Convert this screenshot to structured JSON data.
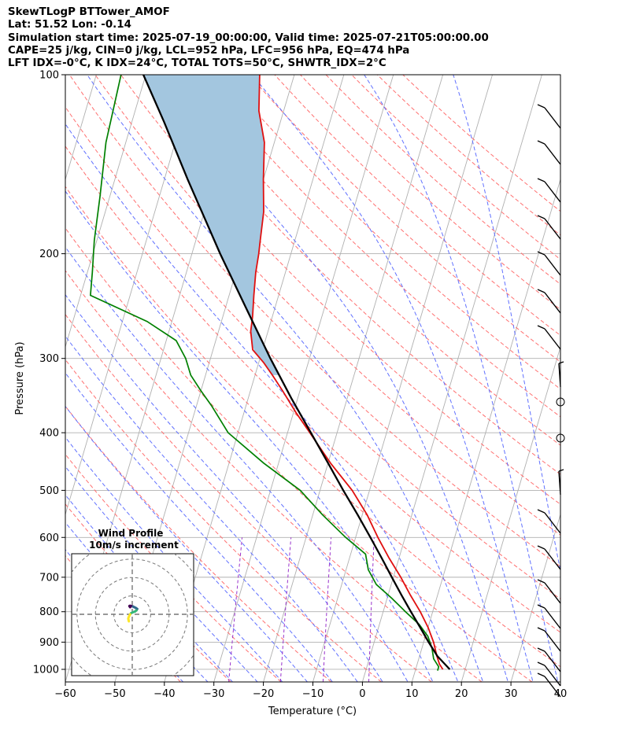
{
  "header": {
    "line1": "SkewTLogP BTTower_AMOF",
    "line2": "Lat: 51.52   Lon: -0.14",
    "line3": "Simulation start time: 2025-07-19_00:00:00, Valid time: 2025-07-21T05:00:00.00",
    "line4": "CAPE=25 j/kg, CIN=0 j/kg, LCL=952 hPa, LFC=956 hPa, EQ=474 hPa",
    "line5": "LFT IDX=-0°C, K IDX=24°C, TOTAL TOTS=50°C, SHWTR_IDX=2°C"
  },
  "chart_data": [
    {
      "type": "line",
      "subtype": "skew-T log-P",
      "xlabel": "Temperature (°C)",
      "ylabel": "Pressure (hPa)",
      "xlim": [
        -60,
        40
      ],
      "ylim": [
        1050,
        100
      ],
      "y_scale": "log",
      "grid": true,
      "x_ticks": [
        "−60",
        "−50",
        "−40",
        "−30",
        "−20",
        "−10",
        "0",
        "10",
        "20",
        "30",
        "40"
      ],
      "y_ticks": [
        "100",
        "200",
        "300",
        "400",
        "500",
        "600",
        "700",
        "800",
        "900",
        "1000"
      ],
      "x_tick_values": [
        -60,
        -50,
        -40,
        -30,
        -20,
        -10,
        0,
        10,
        20,
        30,
        40
      ],
      "y_tick_values": [
        100,
        200,
        300,
        400,
        500,
        600,
        700,
        800,
        900,
        1000
      ],
      "colors": {
        "temperature": "#e01010",
        "dewpoint": "#008000",
        "parcel": "#000000",
        "cape_fill": "#a3c6df",
        "dry_adiabat": "#ff7070",
        "moist_adiabat": "#6070ff",
        "isotherm": "#b0b0b0",
        "mixing_ratio": "#9933cc"
      },
      "series": [
        {
          "name": "",
          "role": "temperature",
          "p": [
            100,
            115,
            130,
            150,
            170,
            190,
            200,
            215,
            235,
            255,
            270,
            290,
            305,
            320,
            340,
            370,
            400,
            450,
            500,
            550,
            600,
            650,
            700,
            750,
            800,
            850,
            900,
            950,
            980,
            1000
          ],
          "t": [
            -57,
            -55,
            -52,
            -50,
            -48,
            -47,
            -46.5,
            -46,
            -45,
            -44,
            -43.5,
            -42,
            -39,
            -36.5,
            -33.5,
            -29.5,
            -25.5,
            -19.5,
            -13.5,
            -9,
            -5.5,
            -2,
            1.5,
            4.5,
            7.5,
            10,
            12,
            13.5,
            14.5,
            15.5
          ]
        },
        {
          "name": "",
          "role": "dewpoint",
          "p": [
            100,
            130,
            160,
            190,
            215,
            235,
            260,
            280,
            300,
            320,
            340,
            360,
            400,
            450,
            500,
            550,
            600,
            640,
            680,
            720,
            760,
            800,
            840,
            880,
            920,
            960,
            990,
            1005
          ],
          "t": [
            -85,
            -84,
            -82,
            -80.5,
            -79,
            -78,
            -65,
            -58,
            -55,
            -53,
            -50,
            -47,
            -42,
            -33,
            -24,
            -18,
            -12,
            -7,
            -5.5,
            -3,
            1,
            4.5,
            8,
            10.5,
            12,
            13,
            14.5,
            14.5
          ]
        },
        {
          "name": "",
          "role": "parcel",
          "p": [
            100,
            120,
            150,
            200,
            250,
            300,
            350,
            400,
            450,
            500,
            550,
            600,
            650,
            700,
            750,
            800,
            850,
            900,
            950,
            1000
          ],
          "t": [
            -80.5,
            -73.5,
            -65.3,
            -54.3,
            -45.3,
            -37.9,
            -31.3,
            -25.3,
            -20,
            -15.3,
            -10.9,
            -7,
            -3.5,
            -0.3,
            2.7,
            5.6,
            8.4,
            11,
            13.6,
            16.9
          ]
        }
      ]
    },
    {
      "type": "scatter",
      "subtype": "hodograph",
      "title": "Wind Profile",
      "subtitle": "10m/s increment",
      "rings_ms": [
        10,
        20,
        30,
        40
      ],
      "u": [
        -1.5,
        -1.8,
        -2,
        -1.5,
        -0.5,
        0.5,
        1.5,
        2.5,
        3.5,
        3,
        2,
        0.5,
        -0.8,
        -1.5,
        -2,
        -2.5,
        -2.8,
        -2.6,
        -2.4
      ],
      "v": [
        5,
        5.5,
        5.8,
        6,
        5.8,
        5.5,
        5,
        4.5,
        3.8,
        2.8,
        2,
        1.5,
        0.8,
        0,
        -1,
        -2,
        -3,
        -4,
        -5
      ],
      "colors": [
        "#440154",
        "#31688e",
        "#35b779",
        "#fde725"
      ]
    }
  ]
}
